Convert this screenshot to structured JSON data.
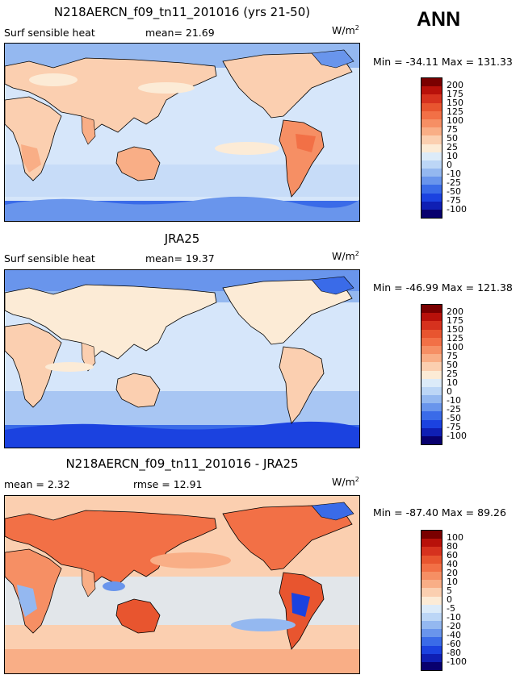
{
  "season": "ANN",
  "panels": [
    {
      "title": "N218AERCN_f09_tn11_201016 (yrs 21-50)",
      "field_label": "Surf sensible heat",
      "stat_text": "mean=  21.69",
      "units_base": "W/m",
      "units_exp": "2",
      "minmax": "Min = -34.11  Max = 131.33",
      "colorbar": {
        "labels": [
          "200",
          "175",
          "150",
          "125",
          "100",
          "75",
          "50",
          "25",
          "10",
          "0",
          "-10",
          "-25",
          "-50",
          "-75",
          "-100"
        ],
        "colors": [
          "#7a0000",
          "#b8110a",
          "#d6321e",
          "#e8552f",
          "#f27046",
          "#f68f64",
          "#f9ae86",
          "#fbcfb0",
          "#fcebd6",
          "#dcebf9",
          "#bcd6f6",
          "#94b8f0",
          "#6995ec",
          "#3a6be8",
          "#1b42e0",
          "#0f1fb4",
          "#08006e"
        ]
      }
    },
    {
      "title": "JRA25",
      "field_label": "Surf sensible heat",
      "stat_text": "mean=  19.37",
      "units_base": "W/m",
      "units_exp": "2",
      "minmax": "Min = -46.99  Max = 121.38",
      "colorbar": {
        "labels": [
          "200",
          "175",
          "150",
          "125",
          "100",
          "75",
          "50",
          "25",
          "10",
          "0",
          "-10",
          "-25",
          "-50",
          "-75",
          "-100"
        ],
        "colors": [
          "#7a0000",
          "#b8110a",
          "#d6321e",
          "#e8552f",
          "#f27046",
          "#f68f64",
          "#f9ae86",
          "#fbcfb0",
          "#fcebd6",
          "#dcebf9",
          "#bcd6f6",
          "#94b8f0",
          "#6995ec",
          "#3a6be8",
          "#1b42e0",
          "#0f1fb4",
          "#08006e"
        ]
      }
    },
    {
      "title": "N218AERCN_f09_tn11_201016 - JRA25",
      "field_label": "mean =   2.32",
      "stat_text": "rmse =  12.91",
      "units_base": "W/m",
      "units_exp": "2",
      "minmax": "Min = -87.40  Max =  89.26",
      "colorbar": {
        "labels": [
          "100",
          "80",
          "60",
          "40",
          "20",
          "10",
          "5",
          "0",
          "-5",
          "-10",
          "-20",
          "-40",
          "-60",
          "-80",
          "-100"
        ],
        "colors": [
          "#7a0000",
          "#b8110a",
          "#d6321e",
          "#e8552f",
          "#f27046",
          "#f68f64",
          "#f9ae86",
          "#fbcfb0",
          "#fcebd6",
          "#dcebf9",
          "#bcd6f6",
          "#94b8f0",
          "#6995ec",
          "#3a6be8",
          "#1b42e0",
          "#0f1fb4",
          "#08006e"
        ]
      }
    }
  ]
}
